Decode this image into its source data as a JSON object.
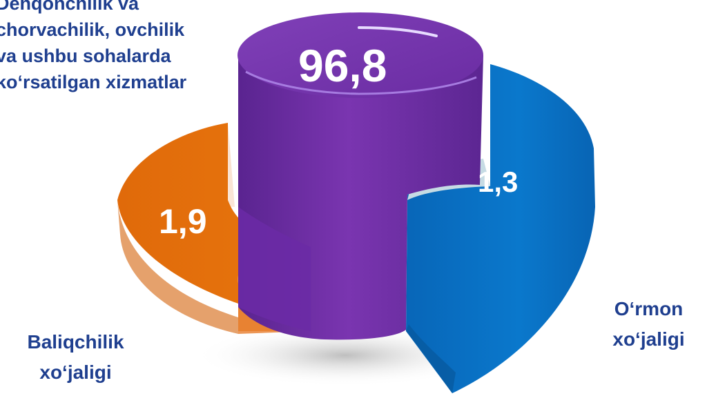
{
  "chart_data": {
    "type": "pie",
    "style": "3d-exploded-pie",
    "slices": [
      {
        "label_lines": [
          "Dehqonchilik va",
          "chorvachilik, ovchilik",
          "va ushbu sohalarda",
          "ko'rsatilgan xizmatlar"
        ],
        "value": 96.8,
        "value_text": "96,8",
        "color": "#7030a0"
      },
      {
        "label_lines": [
          "O‘rmon",
          "xo‘jaligi"
        ],
        "value": 1.3,
        "value_text": "1,3",
        "color": "#0070c0"
      },
      {
        "label_lines": [
          "Baliqchilik",
          "xo‘jaligi"
        ],
        "value": 1.9,
        "value_text": "1,9",
        "color": "#e46c0a"
      }
    ],
    "label_color": "#1f3f8f"
  },
  "labels": {
    "top": [
      "Dehqonchilik va",
      "chorvachilik, ovchilik",
      "va ushbu sohalarda",
      "ko‘rsatilgan xizmatlar"
    ],
    "right": [
      "O‘rmon",
      "xo‘jaligi"
    ],
    "left": [
      "Baliqchilik",
      "xo‘jaligi"
    ]
  }
}
